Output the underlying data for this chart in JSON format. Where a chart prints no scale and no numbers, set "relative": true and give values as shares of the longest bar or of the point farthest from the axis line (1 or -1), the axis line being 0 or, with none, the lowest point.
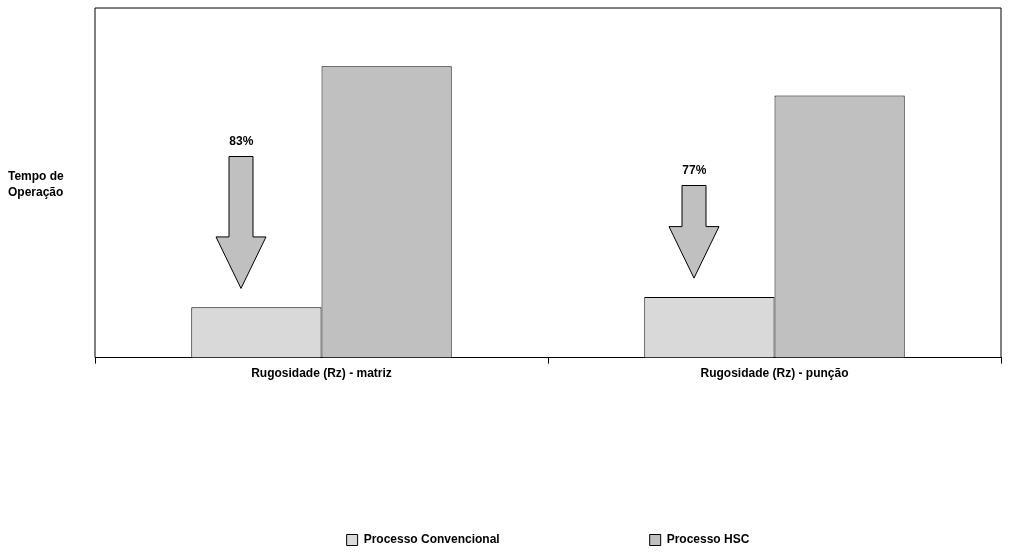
{
  "chart_data": {
    "type": "bar",
    "relative": true,
    "ylabel": "Tempo de\nOperação",
    "categories": [
      "Rugosidade (Rz) - matriz",
      "Rugosidade (Rz) - punção"
    ],
    "series": [
      {
        "name": "Processo Convencional",
        "color": "#d9d9d9",
        "values": [
          0.173,
          0.208
        ]
      },
      {
        "name": "Processo HSC",
        "color": "#c0c0c0",
        "values": [
          1,
          0.9
        ]
      }
    ],
    "annotations": [
      "83%",
      "77%"
    ],
    "legend": "bottom"
  }
}
